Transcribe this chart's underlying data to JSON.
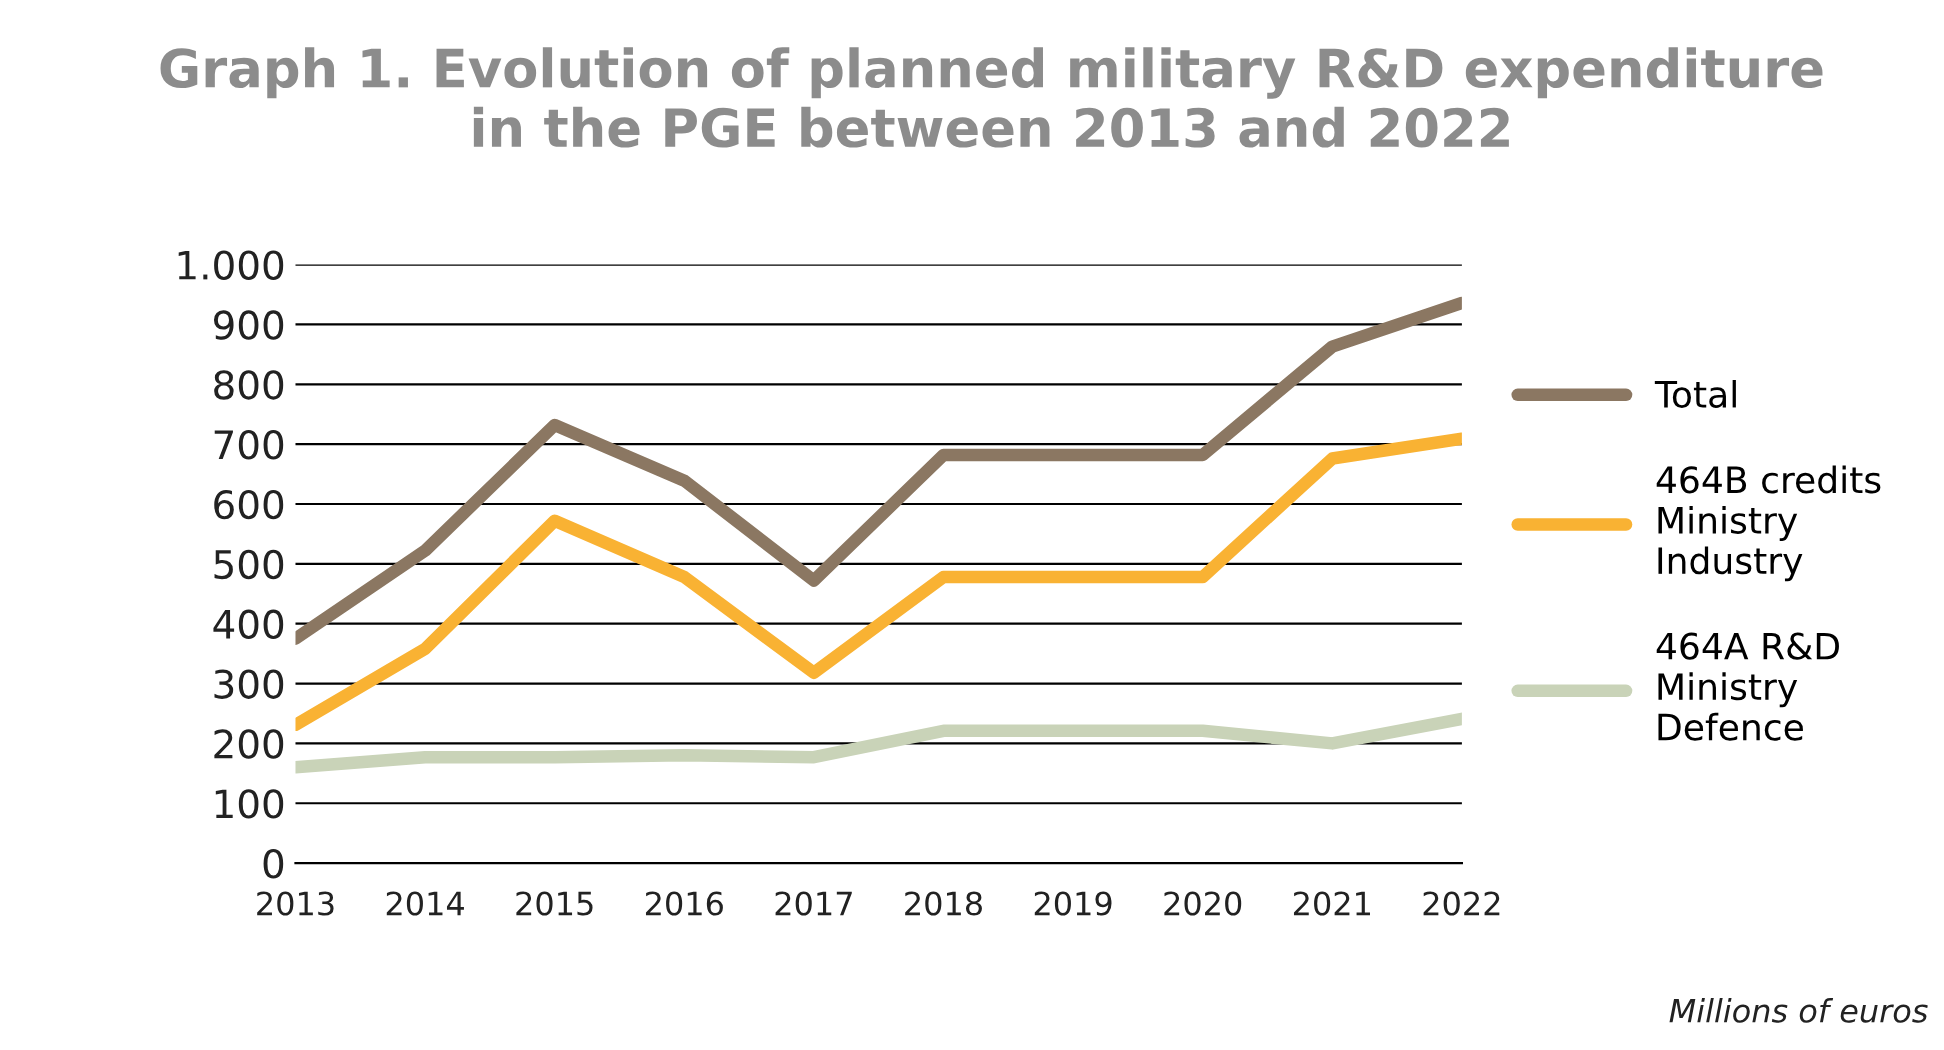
{
  "chart_data": {
    "type": "line",
    "title": "Graph 1. Evolution of planned military R&D expenditure\nin the PGE between 2013 and 2022",
    "categories": [
      "2013",
      "2014",
      "2015",
      "2016",
      "2017",
      "2018",
      "2019",
      "2020",
      "2021",
      "2022"
    ],
    "series": [
      {
        "name": "Total",
        "color": "#8b7762",
        "values": [
          375,
          522,
          732,
          639,
          472,
          682,
          682,
          682,
          863,
          936
        ]
      },
      {
        "name": "464B credits\nMinistry\nIndustry",
        "color": "#f9b233",
        "values": [
          231,
          358,
          572,
          478,
          318,
          478,
          478,
          478,
          676,
          709
        ]
      },
      {
        "name": "464A R&D\nMinistry\nDefence",
        "color": "#c9d3b8",
        "values": [
          160,
          177,
          177,
          180,
          177,
          221,
          221,
          221,
          200,
          241
        ]
      }
    ],
    "ylim": [
      0,
      1000
    ],
    "yticks": [
      0,
      100,
      200,
      300,
      400,
      500,
      600,
      700,
      800,
      900,
      {
        "value": 1000,
        "label": "1.000"
      }
    ],
    "grid": "y",
    "legend": "right",
    "marker": "none",
    "line_style": "solid",
    "annotations": [
      "Millions of euros"
    ]
  }
}
